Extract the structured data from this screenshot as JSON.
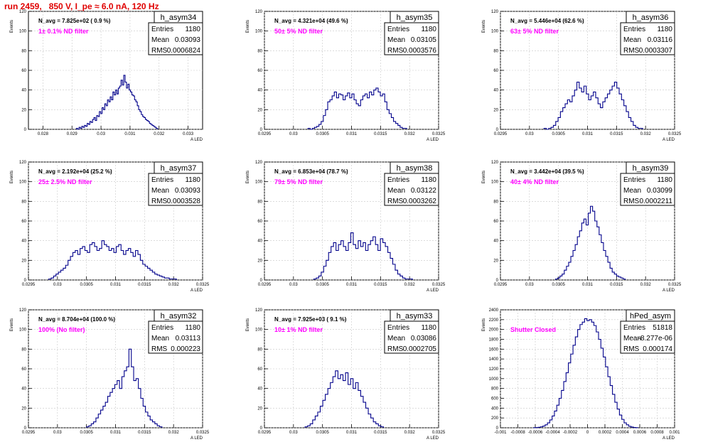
{
  "page": {
    "title": "run 2459,   850 V, I_pe ≈ 6.0 nA, 120 Hz",
    "title_color": "#e00000",
    "annotation_color": "#ff00ff",
    "hist_color": "#00008b",
    "grid_color": "#c8c8c8"
  },
  "chart_data": [
    {
      "type": "bar",
      "name": "h_asym34",
      "ylabel": "Events",
      "xlabel": "A_LED",
      "nlabel": "N_avg = 7.825e+02 ( 0.9 %)",
      "annotation": "1± 0.1% ND filter",
      "stats": [
        [
          "Entries",
          "1180"
        ],
        [
          "Mean",
          "0.03093"
        ],
        [
          "RMS",
          "0.0006824"
        ]
      ],
      "xlim": [
        0.0275,
        0.0335
      ],
      "xticks": [
        "0.028",
        "0.029",
        "0.03",
        "0.031",
        "0.032",
        "0.033"
      ],
      "xtick_values": [
        0.028,
        0.029,
        0.03,
        0.031,
        0.032,
        0.033
      ],
      "ylim": [
        0,
        120
      ],
      "yticks": [
        0,
        20,
        40,
        60,
        80,
        100,
        120
      ],
      "bin_edges": [
        0.02915,
        0.03195
      ],
      "values": [
        1,
        0,
        2,
        1,
        3,
        2,
        4,
        3,
        6,
        5,
        8,
        7,
        10,
        12,
        9,
        14,
        13,
        18,
        16,
        22,
        20,
        26,
        24,
        30,
        28,
        33,
        30,
        38,
        35,
        40,
        36,
        42,
        44,
        50,
        45,
        55,
        48,
        42,
        46,
        40,
        38,
        35,
        34,
        30,
        28,
        24,
        20,
        18,
        15,
        13,
        12,
        10,
        9,
        8,
        6,
        5,
        4,
        3,
        2,
        1
      ]
    },
    {
      "type": "bar",
      "name": "h_asym35",
      "ylabel": "Events",
      "xlabel": "A_LED",
      "nlabel": "N_avg = 4.321e+04 (49.6 %)",
      "annotation": "50± 5% ND filter",
      "stats": [
        [
          "Entries",
          "1180"
        ],
        [
          "Mean",
          "0.03105"
        ],
        [
          "RMS",
          "0.0003576"
        ]
      ],
      "xlim": [
        0.0295,
        0.0325
      ],
      "xticks": [
        "0.0295",
        "0.03",
        "0.0305",
        "0.031",
        "0.0315",
        "0.032",
        "0.0325"
      ],
      "xtick_values": [
        0.0295,
        0.03,
        0.0305,
        0.031,
        0.0315,
        0.032,
        0.0325
      ],
      "ylim": [
        0,
        120
      ],
      "yticks": [
        0,
        20,
        40,
        60,
        80,
        100,
        120
      ],
      "bin_edges": [
        0.03025,
        0.03195
      ],
      "values": [
        1,
        0,
        1,
        2,
        3,
        5,
        8,
        14,
        20,
        28,
        30,
        34,
        38,
        32,
        36,
        35,
        30,
        34,
        37,
        32,
        36,
        30,
        26,
        24,
        30,
        34,
        36,
        32,
        38,
        35,
        40,
        42,
        38,
        34,
        36,
        28,
        20,
        16,
        12,
        8,
        6,
        4,
        2,
        1,
        1
      ]
    },
    {
      "type": "bar",
      "name": "h_asym36",
      "ylabel": "Events",
      "xlabel": "A_LED",
      "nlabel": "N_avg = 5.446e+04 (62.6 %)",
      "annotation": "63± 5% ND filter",
      "stats": [
        [
          "Entries",
          "1180"
        ],
        [
          "Mean",
          "0.03116"
        ],
        [
          "RMS",
          "0.0003307"
        ]
      ],
      "xlim": [
        0.0295,
        0.0325
      ],
      "xticks": [
        "0.0295",
        "0.03",
        "0.0305",
        "0.031",
        "0.0315",
        "0.032",
        "0.0325"
      ],
      "xtick_values": [
        0.0295,
        0.03,
        0.0305,
        0.031,
        0.0315,
        0.032,
        0.0325
      ],
      "ylim": [
        0,
        120
      ],
      "yticks": [
        0,
        20,
        40,
        60,
        80,
        100,
        120
      ],
      "bin_edges": [
        0.03025,
        0.03195
      ],
      "values": [
        1,
        0,
        1,
        2,
        4,
        8,
        12,
        18,
        22,
        26,
        30,
        28,
        34,
        40,
        48,
        42,
        38,
        44,
        36,
        30,
        34,
        38,
        32,
        26,
        22,
        28,
        32,
        36,
        40,
        44,
        48,
        42,
        36,
        30,
        24,
        18,
        12,
        8,
        4,
        2,
        1,
        1
      ]
    },
    {
      "type": "bar",
      "name": "h_asym37",
      "ylabel": "Events",
      "xlabel": "A_LED",
      "nlabel": "N_avg = 2.192e+04 (25.2 %)",
      "annotation": "25± 2.5% ND filter",
      "stats": [
        [
          "Entries",
          "1180"
        ],
        [
          "Mean",
          "0.03093"
        ],
        [
          "RMS",
          "0.0003528"
        ]
      ],
      "xlim": [
        0.0295,
        0.0325
      ],
      "xticks": [
        "0.0295",
        "0.03",
        "0.0305",
        "0.031",
        "0.0315",
        "0.032",
        "0.0325"
      ],
      "xtick_values": [
        0.0295,
        0.03,
        0.0305,
        0.031,
        0.0315,
        0.032,
        0.0325
      ],
      "ylim": [
        0,
        120
      ],
      "yticks": [
        0,
        20,
        40,
        60,
        80,
        100,
        120
      ],
      "bin_edges": [
        0.02985,
        0.03205
      ],
      "values": [
        1,
        2,
        4,
        6,
        8,
        10,
        12,
        15,
        20,
        24,
        28,
        30,
        26,
        32,
        34,
        30,
        28,
        36,
        38,
        34,
        30,
        32,
        40,
        36,
        34,
        30,
        32,
        28,
        34,
        36,
        30,
        26,
        30,
        32,
        28,
        24,
        30,
        26,
        20,
        16,
        14,
        12,
        10,
        8,
        6,
        5,
        4,
        3,
        2,
        2,
        1,
        1,
        1
      ]
    },
    {
      "type": "bar",
      "name": "h_asym38",
      "ylabel": "Events",
      "xlabel": "A_LED",
      "nlabel": "N_avg = 6.853e+04 (78.7 %)",
      "annotation": "79± 5% ND filter",
      "stats": [
        [
          "Entries",
          "1180"
        ],
        [
          "Mean",
          "0.03122"
        ],
        [
          "RMS",
          "0.0003262"
        ]
      ],
      "xlim": [
        0.0295,
        0.0325
      ],
      "xticks": [
        "0.0295",
        "0.03",
        "0.0305",
        "0.031",
        "0.0315",
        "0.032",
        "0.0325"
      ],
      "xtick_values": [
        0.0295,
        0.03,
        0.0305,
        0.031,
        0.0315,
        0.032,
        0.0325
      ],
      "ylim": [
        0,
        120
      ],
      "yticks": [
        0,
        20,
        40,
        60,
        80,
        100,
        120
      ],
      "bin_edges": [
        0.03035,
        0.03205
      ],
      "values": [
        1,
        2,
        4,
        8,
        14,
        20,
        28,
        34,
        38,
        30,
        36,
        40,
        34,
        30,
        38,
        48,
        36,
        32,
        40,
        34,
        38,
        30,
        36,
        40,
        44,
        36,
        30,
        42,
        38,
        34,
        28,
        22,
        16,
        10,
        6,
        4,
        2,
        1,
        1,
        1
      ]
    },
    {
      "type": "bar",
      "name": "h_asym39",
      "ylabel": "Events",
      "xlabel": "A_LED",
      "nlabel": "N_avg = 3.442e+04 (39.5 %)",
      "annotation": "40± 4% ND filter",
      "stats": [
        [
          "Entries",
          "1180"
        ],
        [
          "Mean",
          "0.03099"
        ],
        [
          "RMS",
          "0.0002211"
        ]
      ],
      "xlim": [
        0.0295,
        0.0325
      ],
      "xticks": [
        "0.0295",
        "0.03",
        "0.0305",
        "0.031",
        "0.0315",
        "0.032",
        "0.0325"
      ],
      "xtick_values": [
        0.0295,
        0.03,
        0.0305,
        0.031,
        0.0315,
        0.032,
        0.0325
      ],
      "ylim": [
        0,
        120
      ],
      "yticks": [
        0,
        20,
        40,
        60,
        80,
        100,
        120
      ],
      "bin_edges": [
        0.03045,
        0.03165
      ],
      "values": [
        1,
        2,
        4,
        6,
        10,
        14,
        18,
        24,
        30,
        36,
        44,
        50,
        58,
        62,
        56,
        68,
        75,
        70,
        60,
        54,
        46,
        38,
        30,
        24,
        18,
        12,
        8,
        6,
        4,
        3,
        2,
        1
      ]
    },
    {
      "type": "bar",
      "name": "h_asym32",
      "ylabel": "Events",
      "xlabel": "A_LED",
      "nlabel": "N_avg = 8.704e+04 (100.0 %)",
      "annotation": "100% (No filter)",
      "stats": [
        [
          "Entries",
          "1180"
        ],
        [
          "Mean",
          "0.03113"
        ],
        [
          "RMS",
          "0.000223"
        ]
      ],
      "xlim": [
        0.0295,
        0.0325
      ],
      "xticks": [
        "0.0295",
        "0.03",
        "0.0305",
        "0.031",
        "0.0315",
        "0.032",
        "0.0325"
      ],
      "xtick_values": [
        0.0295,
        0.03,
        0.0305,
        0.031,
        0.0315,
        0.032,
        0.0325
      ],
      "ylim": [
        0,
        120
      ],
      "yticks": [
        0,
        20,
        40,
        60,
        80,
        100,
        120
      ],
      "bin_edges": [
        0.0305,
        0.0318
      ],
      "values": [
        1,
        2,
        4,
        6,
        10,
        14,
        18,
        22,
        26,
        32,
        36,
        40,
        44,
        48,
        40,
        52,
        58,
        62,
        80,
        62,
        48,
        50,
        40,
        30,
        22,
        16,
        12,
        8,
        6,
        4,
        2,
        1
      ]
    },
    {
      "type": "bar",
      "name": "h_asym33",
      "ylabel": "Events",
      "xlabel": "A_LED",
      "nlabel": "N_avg = 7.925e+03 ( 9.1 %)",
      "annotation": "10± 1% ND filter",
      "stats": [
        [
          "Entries",
          "1180"
        ],
        [
          "Mean",
          "0.03086"
        ],
        [
          "RMS",
          "0.0002705"
        ]
      ],
      "xlim": [
        0.0295,
        0.0325
      ],
      "xticks": [
        "0.0295",
        "0.03",
        "0.0305",
        "0.031",
        "0.0315",
        "0.032",
        "0.0325"
      ],
      "xtick_values": [
        0.0295,
        0.03,
        0.0305,
        0.031,
        0.0315,
        0.032,
        0.0325
      ],
      "ylim": [
        0,
        120
      ],
      "yticks": [
        0,
        20,
        40,
        60,
        80,
        100,
        120
      ],
      "bin_edges": [
        0.0302,
        0.03155
      ],
      "values": [
        1,
        2,
        4,
        8,
        12,
        16,
        22,
        28,
        34,
        40,
        46,
        52,
        58,
        50,
        54,
        48,
        56,
        44,
        50,
        40,
        46,
        38,
        32,
        26,
        20,
        14,
        10,
        6,
        4,
        2,
        1
      ]
    },
    {
      "type": "bar",
      "name": "hPed_asym",
      "ylabel": "Events",
      "xlabel": "A_LED",
      "nlabel": "",
      "annotation": "Shutter Closed",
      "stats": [
        [
          "Entries",
          "51818"
        ],
        [
          "Mean",
          "-8.277e-06"
        ],
        [
          "RMS",
          "0.000174"
        ]
      ],
      "xlim": [
        -0.001,
        0.001
      ],
      "xticks": [
        "-0.001",
        "-0.0008",
        "-0.0006",
        "-0.0004",
        "-0.0002",
        "0",
        "0.0002",
        "0.0004",
        "0.0006",
        "0.0008",
        "0.001"
      ],
      "xtick_values": [
        -0.001,
        -0.0008,
        -0.0006,
        -0.0004,
        -0.0002,
        0,
        0.0002,
        0.0004,
        0.0006,
        0.0008,
        0.001
      ],
      "ylim": [
        0,
        2400
      ],
      "yticks": [
        0,
        200,
        400,
        600,
        800,
        1000,
        1200,
        1400,
        1600,
        1800,
        2000,
        2200,
        2400
      ],
      "bin_edges": [
        -0.00062,
        0.00058
      ],
      "values": [
        2,
        5,
        10,
        20,
        35,
        60,
        100,
        160,
        240,
        340,
        460,
        600,
        760,
        940,
        1120,
        1320,
        1500,
        1680,
        1850,
        2000,
        2100,
        2150,
        2220,
        2180,
        2200,
        2150,
        2080,
        1950,
        1800,
        1620,
        1440,
        1240,
        1040,
        860,
        680,
        520,
        380,
        260,
        170,
        100,
        60,
        30,
        15,
        6,
        2
      ]
    }
  ]
}
